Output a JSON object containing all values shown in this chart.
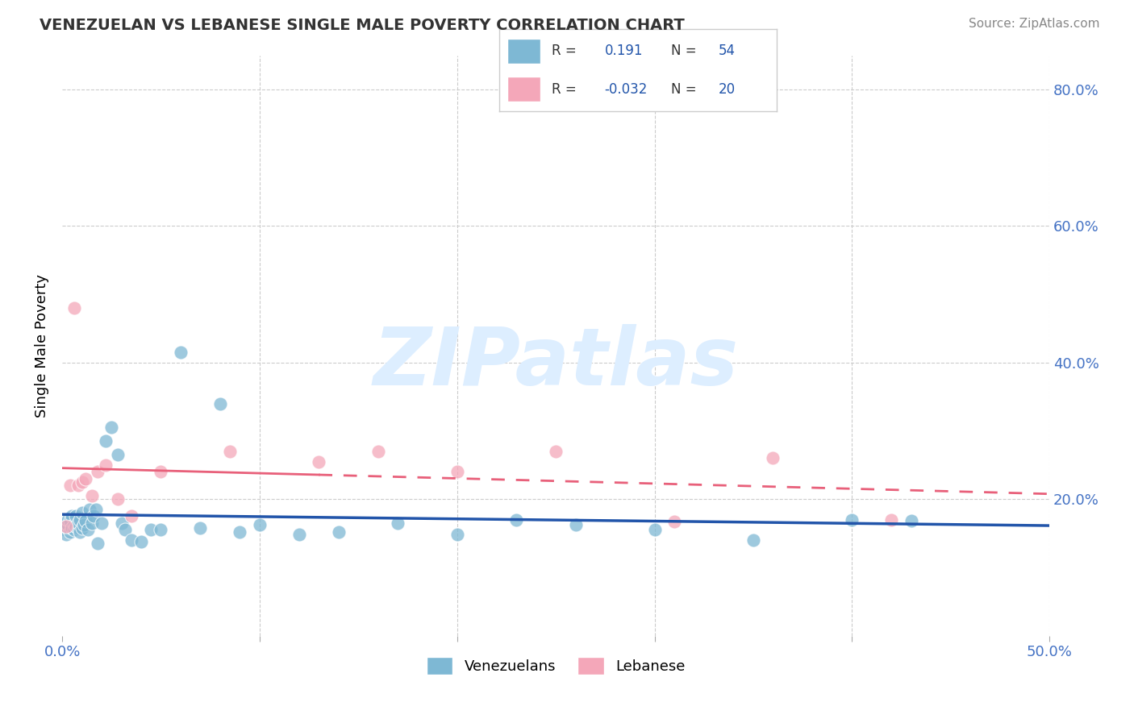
{
  "title": "VENEZUELAN VS LEBANESE SINGLE MALE POVERTY CORRELATION CHART",
  "source": "Source: ZipAtlas.com",
  "ylabel": "Single Male Poverty",
  "xlim": [
    0.0,
    0.5
  ],
  "ylim": [
    0.0,
    0.85
  ],
  "venezuelan_color": "#7EB8D4",
  "lebanese_color": "#F4A7B9",
  "venezuelan_line_color": "#2255AA",
  "lebanese_line_color": "#E8607A",
  "background_color": "#FFFFFF",
  "grid_color": "#CCCCCC",
  "venezuelan_x": [
    0.001,
    0.001,
    0.002,
    0.002,
    0.003,
    0.003,
    0.003,
    0.004,
    0.004,
    0.005,
    0.005,
    0.006,
    0.006,
    0.007,
    0.007,
    0.008,
    0.008,
    0.009,
    0.009,
    0.01,
    0.01,
    0.011,
    0.012,
    0.013,
    0.014,
    0.015,
    0.016,
    0.017,
    0.018,
    0.02,
    0.022,
    0.025,
    0.028,
    0.03,
    0.032,
    0.035,
    0.04,
    0.045,
    0.05,
    0.06,
    0.07,
    0.08,
    0.09,
    0.1,
    0.12,
    0.14,
    0.17,
    0.2,
    0.23,
    0.26,
    0.3,
    0.35,
    0.4,
    0.43
  ],
  "venezuelan_y": [
    0.155,
    0.16,
    0.148,
    0.165,
    0.158,
    0.162,
    0.17,
    0.152,
    0.168,
    0.158,
    0.175,
    0.162,
    0.155,
    0.16,
    0.175,
    0.158,
    0.165,
    0.152,
    0.17,
    0.158,
    0.18,
    0.162,
    0.168,
    0.155,
    0.185,
    0.165,
    0.175,
    0.185,
    0.135,
    0.165,
    0.285,
    0.305,
    0.265,
    0.165,
    0.155,
    0.14,
    0.138,
    0.155,
    0.155,
    0.415,
    0.158,
    0.34,
    0.152,
    0.162,
    0.148,
    0.152,
    0.165,
    0.148,
    0.17,
    0.162,
    0.155,
    0.14,
    0.17,
    0.168
  ],
  "lebanese_x": [
    0.002,
    0.004,
    0.006,
    0.008,
    0.01,
    0.012,
    0.015,
    0.018,
    0.022,
    0.028,
    0.035,
    0.05,
    0.085,
    0.13,
    0.16,
    0.2,
    0.25,
    0.31,
    0.36,
    0.42
  ],
  "lebanese_y": [
    0.16,
    0.22,
    0.48,
    0.22,
    0.225,
    0.23,
    0.205,
    0.24,
    0.25,
    0.2,
    0.175,
    0.24,
    0.27,
    0.255,
    0.27,
    0.24,
    0.27,
    0.167,
    0.26,
    0.17
  ]
}
